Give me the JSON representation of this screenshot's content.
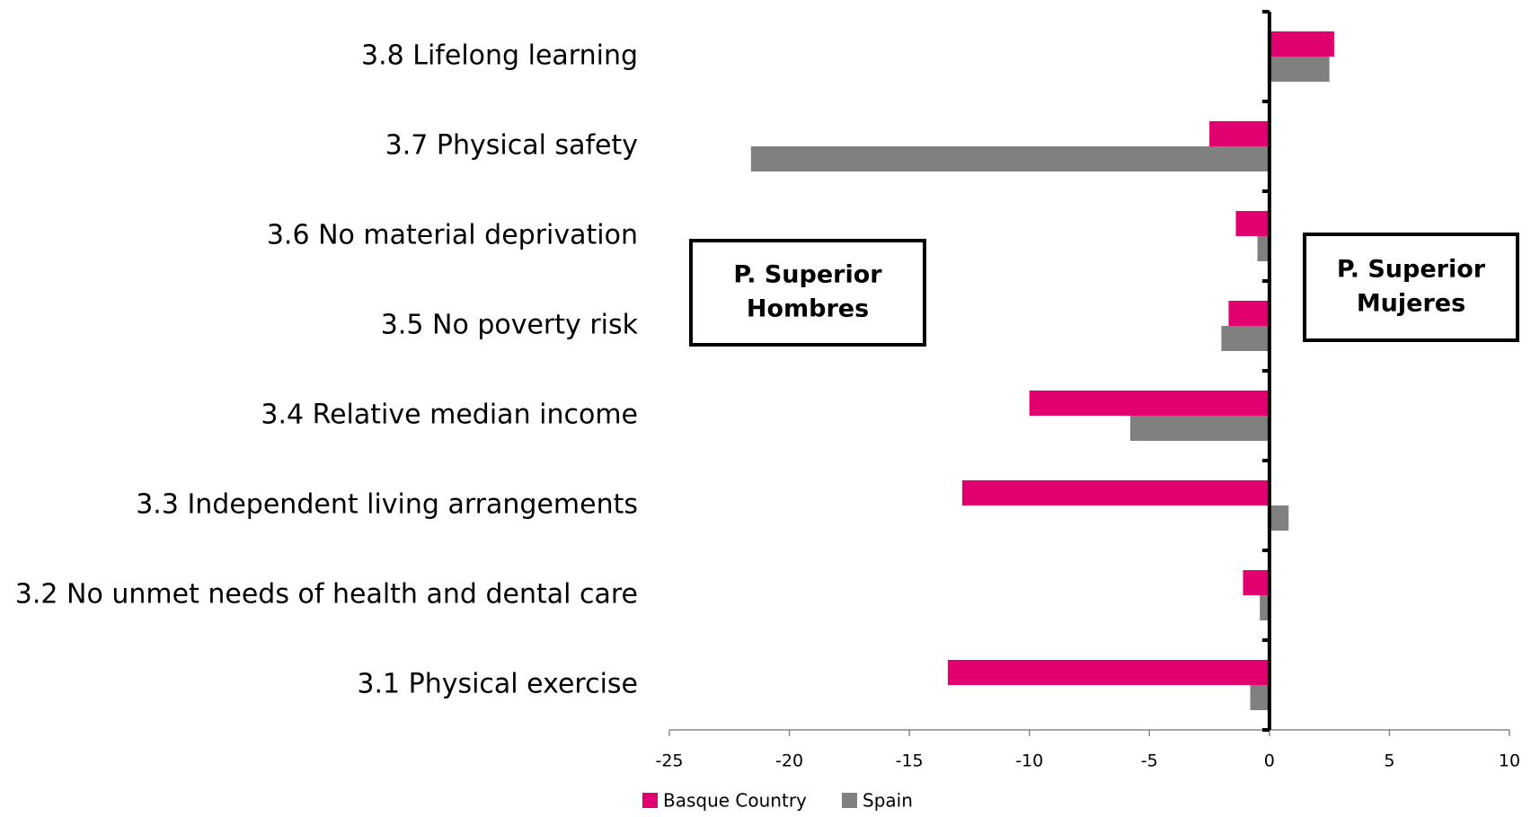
{
  "chart_data": {
    "type": "bar",
    "orientation": "horizontal",
    "categories": [
      "3.1 Physical exercise",
      "3.2 No unmet needs of health and dental care",
      "3.3 Independent living arrangements",
      "3.4 Relative median income",
      "3.5 No poverty risk",
      "3.6 No material deprivation",
      "3.7 Physical safety",
      "3.8 Lifelong learning"
    ],
    "series": [
      {
        "name": "Basque Country",
        "color": "#e0006e",
        "values": [
          -13.4,
          -1.1,
          -12.8,
          -10.0,
          -1.7,
          -1.4,
          -2.5,
          2.7
        ]
      },
      {
        "name": "Spain",
        "color": "#808080",
        "values": [
          -0.8,
          -0.4,
          0.8,
          -5.8,
          -2.0,
          -0.5,
          -21.6,
          2.5
        ]
      }
    ],
    "xlim": [
      -25,
      10
    ],
    "xticks": [
      -25,
      -20,
      -15,
      -10,
      -5,
      0,
      5,
      10
    ],
    "legend": "bottom",
    "annotations": [
      {
        "lines": [
          "P. Superior",
          "Hombres"
        ]
      },
      {
        "lines": [
          "P. Superior",
          "Mujeres"
        ]
      }
    ]
  }
}
